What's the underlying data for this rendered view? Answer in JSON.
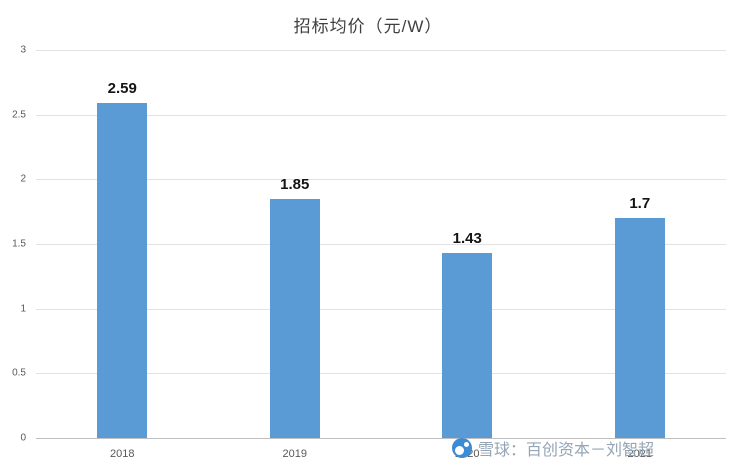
{
  "watermark": {
    "text": "雪球：百创资本－刘智超",
    "icon": "xueqiu-logo",
    "icon_color": "#3d8bd4",
    "text_color": "#95a5b5"
  },
  "chart_data": {
    "type": "bar",
    "title": "招标均价（元/W）",
    "categories": [
      "2018",
      "2019",
      "2020",
      "2021"
    ],
    "values": [
      2.59,
      1.85,
      1.43,
      1.7
    ],
    "value_labels": [
      "2.59",
      "1.85",
      "1.43",
      "1.7"
    ],
    "xlabel": "",
    "ylabel": "",
    "ylim": [
      0,
      3
    ],
    "yticks": [
      0,
      0.5,
      1,
      1.5,
      2,
      2.5,
      3
    ],
    "ytick_labels": [
      "0",
      "0.5",
      "1",
      "1.5",
      "2",
      "2.5",
      "3"
    ],
    "bar_color": "#5B9BD5",
    "grid": "horizontal",
    "legend": "none"
  }
}
